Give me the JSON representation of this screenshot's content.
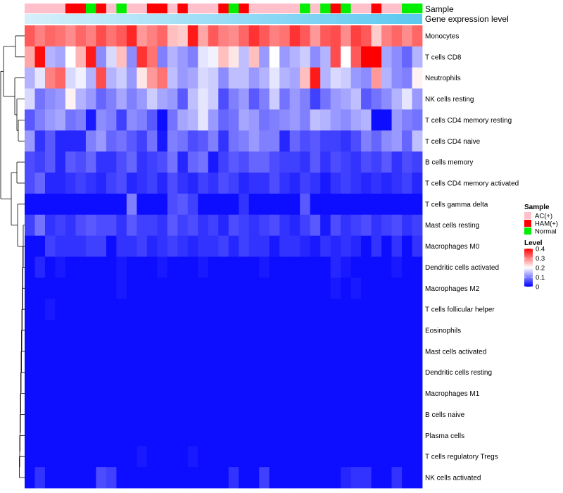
{
  "chart_data": {
    "type": "heatmap",
    "title": "",
    "column_annotation": {
      "sample_track_label": "Sample",
      "expression_track_label": "Gene expression level",
      "sample_groups": [
        "AC(+)",
        "AC(+)",
        "AC(+)",
        "AC(+)",
        "HAM(+)",
        "HAM(+)",
        "Normal",
        "HAM(+)",
        "AC(+)",
        "Normal",
        "AC(+)",
        "AC(+)",
        "HAM(+)",
        "HAM(+)",
        "AC(+)",
        "HAM(+)",
        "AC(+)",
        "AC(+)",
        "AC(+)",
        "HAM(+)",
        "Normal",
        "HAM(+)",
        "AC(+)",
        "AC(+)",
        "AC(+)",
        "AC(+)",
        "AC(+)",
        "Normal",
        "AC(+)",
        "Normal",
        "HAM(+)",
        "Normal",
        "AC(+)",
        "AC(+)",
        "HAM(+)",
        "AC(+)",
        "AC(+)",
        "Normal",
        "Normal"
      ]
    },
    "rows": [
      {
        "name": "Monocytes",
        "values": [
          0.33,
          0.3,
          0.32,
          0.31,
          0.29,
          0.32,
          0.3,
          0.34,
          0.31,
          0.33,
          0.37,
          0.28,
          0.3,
          0.32,
          0.25,
          0.24,
          0.38,
          0.27,
          0.33,
          0.3,
          0.29,
          0.32,
          0.36,
          0.33,
          0.3,
          0.31,
          0.36,
          0.33,
          0.28,
          0.33,
          0.34,
          0.29,
          0.35,
          0.33,
          0.24,
          0.3,
          0.32,
          0.29,
          0.32
        ]
      },
      {
        "name": "T cells CD8",
        "values": [
          0.27,
          0.39,
          0.14,
          0.13,
          0.2,
          0.26,
          0.38,
          0.11,
          0.17,
          0.25,
          0.11,
          0.36,
          0.31,
          0.1,
          0.14,
          0.12,
          0.1,
          0.18,
          0.19,
          0.25,
          0.22,
          0.15,
          0.25,
          0.12,
          0.2,
          0.12,
          0.14,
          0.16,
          0.11,
          0.14,
          0.34,
          0.2,
          0.33,
          0.4,
          0.4,
          0.13,
          0.11,
          0.08,
          0.14
        ]
      },
      {
        "name": "Neutrophils",
        "values": [
          0.14,
          0.18,
          0.3,
          0.32,
          0.17,
          0.19,
          0.14,
          0.34,
          0.14,
          0.16,
          0.12,
          0.22,
          0.28,
          0.31,
          0.15,
          0.12,
          0.13,
          0.17,
          0.16,
          0.11,
          0.15,
          0.15,
          0.12,
          0.14,
          0.18,
          0.14,
          0.13,
          0.25,
          0.38,
          0.14,
          0.17,
          0.16,
          0.12,
          0.11,
          0.28,
          0.14,
          0.11,
          0.1,
          0.21
        ]
      },
      {
        "name": "NK cells resting",
        "values": [
          0.17,
          0.09,
          0.11,
          0.12,
          0.21,
          0.14,
          0.12,
          0.08,
          0.1,
          0.13,
          0.1,
          0.12,
          0.16,
          0.13,
          0.12,
          0.07,
          0.15,
          0.18,
          0.16,
          0.06,
          0.1,
          0.12,
          0.07,
          0.1,
          0.16,
          0.09,
          0.12,
          0.1,
          0.05,
          0.09,
          0.12,
          0.13,
          0.15,
          0.07,
          0.09,
          0.11,
          0.14,
          0.18,
          0.12
        ]
      },
      {
        "name": "T cells CD4 memory resting",
        "values": [
          0.07,
          0.1,
          0.12,
          0.13,
          0.09,
          0.1,
          0.02,
          0.11,
          0.1,
          0.05,
          0.11,
          0.1,
          0.07,
          0.01,
          0.09,
          0.13,
          0.14,
          0.18,
          0.12,
          0.08,
          0.09,
          0.13,
          0.12,
          0.09,
          0.1,
          0.11,
          0.12,
          0.1,
          0.15,
          0.14,
          0.12,
          0.11,
          0.13,
          0.14,
          0.01,
          0.01,
          0.12,
          0.1,
          0.09
        ]
      },
      {
        "name": "T cells CD4 naive",
        "values": [
          0.12,
          0.04,
          0.07,
          0.03,
          0.03,
          0.03,
          0.1,
          0.12,
          0.08,
          0.09,
          0.07,
          0.05,
          0.09,
          0.02,
          0.1,
          0.09,
          0.06,
          0.07,
          0.1,
          0.04,
          0.09,
          0.1,
          0.12,
          0.1,
          0.1,
          0.03,
          0.08,
          0.06,
          0.07,
          0.05,
          0.05,
          0.04,
          0.06,
          0.1,
          0.08,
          0.11,
          0.12,
          0.08,
          0.15
        ]
      },
      {
        "name": "B cells memory",
        "values": [
          0.06,
          0.05,
          0.07,
          0.03,
          0.07,
          0.06,
          0.08,
          0.04,
          0.04,
          0.06,
          0.08,
          0.04,
          0.05,
          0.06,
          0.09,
          0.03,
          0.08,
          0.09,
          0.02,
          0.05,
          0.07,
          0.06,
          0.08,
          0.08,
          0.06,
          0.05,
          0.05,
          0.04,
          0.07,
          0.04,
          0.06,
          0.05,
          0.04,
          0.06,
          0.05,
          0.07,
          0.04,
          0.06,
          0.05
        ]
      },
      {
        "name": "T cells CD4 memory activated",
        "values": [
          0.06,
          0.08,
          0.03,
          0.03,
          0.04,
          0.05,
          0.04,
          0.03,
          0.05,
          0.06,
          0.03,
          0.04,
          0.05,
          0.03,
          0.06,
          0.04,
          0.03,
          0.05,
          0.04,
          0.06,
          0.05,
          0.03,
          0.04,
          0.04,
          0.06,
          0.04,
          0.03,
          0.05,
          0.04,
          0.02,
          0.04,
          0.05,
          0.04,
          0.03,
          0.04,
          0.03,
          0.04,
          0.05,
          0.03
        ]
      },
      {
        "name": "T cells gamma delta",
        "values": [
          0.01,
          0.01,
          0.01,
          0.01,
          0.01,
          0.01,
          0.01,
          0.01,
          0.01,
          0.01,
          0.1,
          0.01,
          0.01,
          0.01,
          0.06,
          0.07,
          0.05,
          0.01,
          0.01,
          0.01,
          0.01,
          0.04,
          0.01,
          0.01,
          0.01,
          0.01,
          0.01,
          0.07,
          0.01,
          0.01,
          0.01,
          0.01,
          0.01,
          0.01,
          0.01,
          0.01,
          0.01,
          0.01,
          0.01
        ]
      },
      {
        "name": "Mast cells resting",
        "values": [
          0.05,
          0.09,
          0.04,
          0.05,
          0.04,
          0.06,
          0.07,
          0.06,
          0.06,
          0.04,
          0.07,
          0.05,
          0.05,
          0.04,
          0.07,
          0.05,
          0.06,
          0.04,
          0.05,
          0.03,
          0.06,
          0.05,
          0.04,
          0.05,
          0.06,
          0.04,
          0.03,
          0.05,
          0.07,
          0.02,
          0.06,
          0.04,
          0.05,
          0.06,
          0.04,
          0.05,
          0.06,
          0.04,
          0.05
        ]
      },
      {
        "name": "Macrophages M0",
        "values": [
          0.01,
          0.01,
          0.05,
          0.04,
          0.04,
          0.04,
          0.05,
          0.05,
          0.01,
          0.04,
          0.04,
          0.05,
          0.03,
          0.04,
          0.05,
          0.04,
          0.03,
          0.04,
          0.04,
          0.05,
          0.03,
          0.05,
          0.04,
          0.04,
          0.02,
          0.04,
          0.04,
          0.03,
          0.02,
          0.04,
          0.03,
          0.04,
          0.03,
          0.01,
          0.04,
          0.01,
          0.04,
          0.01,
          0.04
        ]
      },
      {
        "name": "Dendritic cells activated",
        "values": [
          0.01,
          0.03,
          0.01,
          0.02,
          0.01,
          0.01,
          0.01,
          0.01,
          0.01,
          0.02,
          0.01,
          0.01,
          0.01,
          0.02,
          0.01,
          0.01,
          0.01,
          0.02,
          0.01,
          0.01,
          0.01,
          0.01,
          0.01,
          0.02,
          0.01,
          0.01,
          0.01,
          0.01,
          0.01,
          0.01,
          0.03,
          0.02,
          0.01,
          0.01,
          0.01,
          0.01,
          0.02,
          0.01,
          0.01
        ]
      },
      {
        "name": "Macrophages M2",
        "values": [
          0.01,
          0.01,
          0.01,
          0.01,
          0.01,
          0.01,
          0.01,
          0.01,
          0.01,
          0.02,
          0.01,
          0.01,
          0.01,
          0.01,
          0.01,
          0.01,
          0.01,
          0.01,
          0.01,
          0.01,
          0.01,
          0.01,
          0.01,
          0.01,
          0.01,
          0.01,
          0.01,
          0.01,
          0.01,
          0.01,
          0.02,
          0.01,
          0.02,
          0.01,
          0.01,
          0.01,
          0.01,
          0.01,
          0.01
        ]
      },
      {
        "name": "T cells follicular helper",
        "values": [
          0.01,
          0.01,
          0.02,
          0.01,
          0.01,
          0.01,
          0.01,
          0.01,
          0.01,
          0.01,
          0.01,
          0.01,
          0.01,
          0.01,
          0.01,
          0.01,
          0.01,
          0.01,
          0.01,
          0.01,
          0.01,
          0.01,
          0.01,
          0.01,
          0.01,
          0.01,
          0.01,
          0.01,
          0.01,
          0.01,
          0.01,
          0.01,
          0.01,
          0.01,
          0.01,
          0.01,
          0.01,
          0.01,
          0.01
        ]
      },
      {
        "name": "Eosinophils",
        "values": [
          0.01,
          0.01,
          0.01,
          0.01,
          0.01,
          0.01,
          0.01,
          0.01,
          0.01,
          0.01,
          0.01,
          0.01,
          0.01,
          0.01,
          0.01,
          0.01,
          0.01,
          0.01,
          0.01,
          0.01,
          0.01,
          0.01,
          0.01,
          0.01,
          0.01,
          0.01,
          0.01,
          0.01,
          0.01,
          0.01,
          0.01,
          0.01,
          0.01,
          0.01,
          0.01,
          0.01,
          0.01,
          0.01,
          0.01
        ]
      },
      {
        "name": "Mast cells activated",
        "values": [
          0.01,
          0.01,
          0.01,
          0.01,
          0.01,
          0.01,
          0.01,
          0.01,
          0.01,
          0.01,
          0.01,
          0.01,
          0.01,
          0.01,
          0.01,
          0.01,
          0.01,
          0.01,
          0.01,
          0.01,
          0.01,
          0.01,
          0.01,
          0.01,
          0.01,
          0.01,
          0.01,
          0.01,
          0.01,
          0.01,
          0.01,
          0.01,
          0.01,
          0.01,
          0.01,
          0.01,
          0.01,
          0.01,
          0.01
        ]
      },
      {
        "name": "Dendritic cells resting",
        "values": [
          0.01,
          0.01,
          0.01,
          0.01,
          0.01,
          0.01,
          0.01,
          0.01,
          0.01,
          0.01,
          0.01,
          0.01,
          0.01,
          0.01,
          0.01,
          0.01,
          0.01,
          0.01,
          0.01,
          0.01,
          0.01,
          0.01,
          0.01,
          0.01,
          0.01,
          0.01,
          0.01,
          0.01,
          0.01,
          0.01,
          0.01,
          0.01,
          0.01,
          0.01,
          0.01,
          0.01,
          0.01,
          0.01,
          0.01
        ]
      },
      {
        "name": "Macrophages M1",
        "values": [
          0.01,
          0.01,
          0.01,
          0.01,
          0.01,
          0.01,
          0.01,
          0.01,
          0.01,
          0.01,
          0.01,
          0.01,
          0.01,
          0.01,
          0.01,
          0.01,
          0.01,
          0.01,
          0.01,
          0.01,
          0.01,
          0.01,
          0.01,
          0.01,
          0.01,
          0.01,
          0.01,
          0.01,
          0.01,
          0.01,
          0.01,
          0.01,
          0.01,
          0.01,
          0.01,
          0.01,
          0.01,
          0.01,
          0.01
        ]
      },
      {
        "name": "B cells naive",
        "values": [
          0.01,
          0.01,
          0.01,
          0.01,
          0.01,
          0.01,
          0.01,
          0.01,
          0.01,
          0.01,
          0.01,
          0.01,
          0.01,
          0.01,
          0.01,
          0.01,
          0.01,
          0.01,
          0.01,
          0.01,
          0.01,
          0.01,
          0.01,
          0.01,
          0.01,
          0.01,
          0.01,
          0.01,
          0.01,
          0.01,
          0.01,
          0.01,
          0.01,
          0.01,
          0.01,
          0.01,
          0.01,
          0.01,
          0.01
        ]
      },
      {
        "name": "Plasma cells",
        "values": [
          0.01,
          0.01,
          0.01,
          0.01,
          0.01,
          0.01,
          0.01,
          0.01,
          0.01,
          0.01,
          0.01,
          0.01,
          0.01,
          0.01,
          0.01,
          0.01,
          0.01,
          0.01,
          0.01,
          0.01,
          0.01,
          0.01,
          0.01,
          0.01,
          0.01,
          0.01,
          0.01,
          0.01,
          0.01,
          0.01,
          0.01,
          0.01,
          0.01,
          0.01,
          0.01,
          0.01,
          0.01,
          0.01,
          0.01
        ]
      },
      {
        "name": "T cells regulatory  Tregs",
        "values": [
          0.01,
          0.01,
          0.01,
          0.01,
          0.01,
          0.01,
          0.01,
          0.01,
          0.01,
          0.01,
          0.01,
          0.02,
          0.01,
          0.01,
          0.01,
          0.01,
          0.02,
          0.01,
          0.01,
          0.01,
          0.01,
          0.01,
          0.01,
          0.01,
          0.01,
          0.01,
          0.01,
          0.01,
          0.01,
          0.01,
          0.01,
          0.01,
          0.01,
          0.01,
          0.01,
          0.01,
          0.01,
          0.01,
          0.01
        ]
      },
      {
        "name": "NK cells activated",
        "values": [
          0.01,
          0.04,
          0.01,
          0.01,
          0.01,
          0.01,
          0.01,
          0.06,
          0.05,
          0.01,
          0.01,
          0.01,
          0.01,
          0.01,
          0.01,
          0.01,
          0.01,
          0.01,
          0.01,
          0.01,
          0.04,
          0.01,
          0.01,
          0.05,
          0.01,
          0.01,
          0.01,
          0.01,
          0.01,
          0.01,
          0.01,
          0.03,
          0.04,
          0.04,
          0.01,
          0.01,
          0.04,
          0.01,
          0.01
        ]
      }
    ],
    "legend": {
      "sample_title": "Sample",
      "groups": [
        {
          "name": "AC(+)",
          "color": "#ffc0cb"
        },
        {
          "name": "HAM(+)",
          "color": "#ff0000"
        },
        {
          "name": "Normal",
          "color": "#00ee00"
        }
      ],
      "level_title": "Level",
      "level_ticks": [
        0.4,
        0.3,
        0.2,
        0.1,
        0
      ],
      "level_range": [
        0,
        0.4
      ]
    },
    "color_scale": {
      "low": "#0000ff",
      "mid": "#ffffff",
      "high": "#ff0000",
      "mid_value": 0.2
    },
    "expression_gradient": [
      "#d6f0fb",
      "#5bc8f0"
    ]
  }
}
